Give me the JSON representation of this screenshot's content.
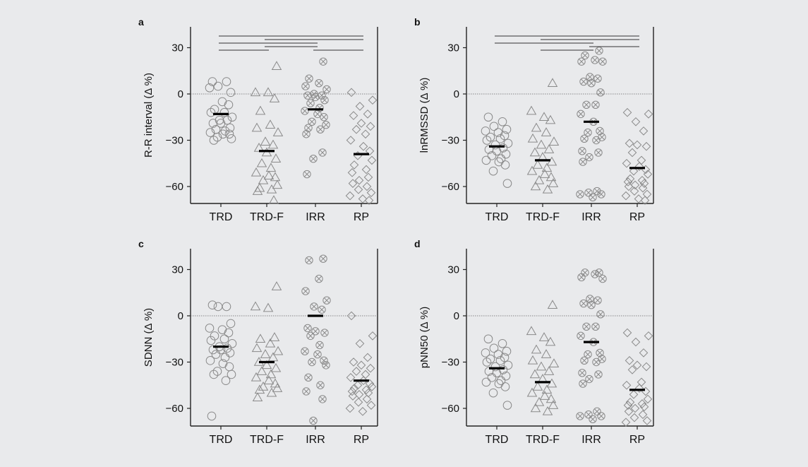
{
  "chart_data": [
    {
      "panel": "a",
      "type": "scatter",
      "ylabel": "R-R interval (Δ %)",
      "categories": [
        "TRD",
        "TRD-F",
        "IRR",
        "RP"
      ],
      "ylim": [
        -70,
        38
      ],
      "yticks": [
        30,
        0,
        -30,
        -60
      ],
      "zero_reference_line": true,
      "markers": [
        "circle",
        "triangle",
        "circle-x",
        "diamond"
      ],
      "medians": [
        -13,
        -37,
        -10,
        -39
      ],
      "points": [
        [
          8,
          8,
          5,
          1,
          4,
          -5,
          -7,
          -10,
          -12,
          -12,
          -15,
          -17,
          -17,
          -19,
          -19,
          -22,
          -23,
          -24,
          -25,
          -26,
          -26,
          -28,
          -29,
          -30
        ],
        [
          18,
          1,
          1,
          -3,
          -11,
          -20,
          -22,
          -25,
          -31,
          -33,
          -35,
          -38,
          -42,
          -45,
          -48,
          -51,
          -53,
          -54,
          -56,
          -59,
          -61,
          -62,
          -63,
          -69
        ],
        [
          21,
          10,
          7,
          5,
          3,
          0,
          -1,
          -1,
          -2,
          -4,
          -6,
          -9,
          -11,
          -13,
          -15,
          -18,
          -20,
          -22,
          -23,
          -26,
          -38,
          -42,
          -52
        ],
        [
          1,
          -4,
          -8,
          -13,
          -14,
          -19,
          -21,
          -23,
          -26,
          -30,
          -34,
          -37,
          -40,
          -43,
          -46,
          -49,
          -51,
          -54,
          -56,
          -58,
          -60,
          -62,
          -64,
          -66,
          -68,
          -69
        ]
      ],
      "significance_brackets": [
        [
          "TRD",
          "TRD-F"
        ],
        [
          "TRD",
          "IRR"
        ],
        [
          "TRD",
          "RP"
        ],
        [
          "TRD-F",
          "IRR"
        ],
        [
          "TRD-F",
          "RP"
        ],
        [
          "IRR",
          "RP"
        ]
      ]
    },
    {
      "panel": "b",
      "type": "scatter",
      "ylabel": "lnRMSSD (Δ %)",
      "categories": [
        "TRD",
        "TRD-F",
        "IRR",
        "RP"
      ],
      "ylim": [
        -70,
        38
      ],
      "yticks": [
        30,
        0,
        -30,
        -60
      ],
      "zero_reference_line": true,
      "markers": [
        "circle",
        "triangle",
        "circle-x",
        "diamond"
      ],
      "medians": [
        -34,
        -43,
        -18,
        -48
      ],
      "points": [
        [
          -15,
          -18,
          -21,
          -23,
          -24,
          -25,
          -27,
          -28,
          -29,
          -30,
          -32,
          -33,
          -35,
          -36,
          -37,
          -39,
          -40,
          -42,
          -43,
          -44,
          -46,
          -50,
          -58
        ],
        [
          7,
          -11,
          -15,
          -17,
          -22,
          -25,
          -29,
          -31,
          -33,
          -36,
          -38,
          -41,
          -44,
          -46,
          -48,
          -50,
          -52,
          -54,
          -56,
          -58,
          -60,
          -62
        ],
        [
          28,
          25,
          22,
          21,
          21,
          11,
          10,
          8,
          7,
          1,
          -7,
          -7,
          -13,
          -18,
          -24,
          -25,
          -28,
          -29,
          -30,
          -37,
          -38,
          -41,
          -44,
          -63,
          -64,
          -65,
          -65,
          -67
        ],
        [
          -12,
          -13,
          -18,
          -24,
          -32,
          -33,
          -34,
          -38,
          -43,
          -45,
          -47,
          -49,
          -50,
          -52,
          -55,
          -56,
          -57,
          -58,
          -59,
          -60,
          -61,
          -63,
          -65,
          -66,
          -68,
          -69
        ]
      ],
      "significance_brackets": [
        [
          "TRD",
          "IRR"
        ],
        [
          "TRD",
          "RP"
        ],
        [
          "TRD-F",
          "IRR"
        ],
        [
          "TRD-F",
          "RP"
        ],
        [
          "IRR",
          "RP"
        ]
      ]
    },
    {
      "panel": "c",
      "type": "scatter",
      "ylabel": "SDNN (Δ %)",
      "categories": [
        "TRD",
        "TRD-F",
        "IRR",
        "RP"
      ],
      "ylim": [
        -70,
        38
      ],
      "yticks": [
        30,
        0,
        -30,
        -60
      ],
      "zero_reference_line": true,
      "markers": [
        "circle",
        "triangle",
        "circle-x",
        "diamond"
      ],
      "medians": [
        -20,
        -30,
        0,
        -42
      ],
      "points": [
        [
          7,
          6,
          6,
          -5,
          -8,
          -9,
          -11,
          -13,
          -15,
          -16,
          -18,
          -20,
          -21,
          -22,
          -22,
          -24,
          -25,
          -27,
          -29,
          -31,
          -33,
          -36,
          -38,
          -38,
          -42,
          -65
        ],
        [
          19,
          6,
          5,
          -14,
          -15,
          -18,
          -21,
          -23,
          -25,
          -27,
          -30,
          -32,
          -34,
          -36,
          -38,
          -40,
          -42,
          -44,
          -46,
          -47,
          -48,
          -50,
          -53
        ],
        [
          37,
          36,
          24,
          16,
          10,
          6,
          4,
          -8,
          -10,
          -11,
          -13,
          -19,
          -23,
          -25,
          -29,
          -30,
          -32,
          -40,
          -45,
          -49,
          -54,
          -68
        ],
        [
          0,
          -13,
          -18,
          -27,
          -30,
          -32,
          -34,
          -36,
          -38,
          -40,
          -42,
          -44,
          -45,
          -46,
          -47,
          -48,
          -49,
          -50,
          -51,
          -52,
          -54,
          -56,
          -58,
          -60,
          -62
        ]
      ]
    },
    {
      "panel": "d",
      "type": "scatter",
      "ylabel": "pNN50 (Δ %)",
      "categories": [
        "TRD",
        "TRD-F",
        "IRR",
        "RP"
      ],
      "ylim": [
        -70,
        38
      ],
      "yticks": [
        30,
        0,
        -30,
        -60
      ],
      "zero_reference_line": true,
      "markers": [
        "circle",
        "triangle",
        "circle-x",
        "diamond"
      ],
      "medians": [
        -34,
        -43,
        -17,
        -48
      ],
      "points": [
        [
          -15,
          -18,
          -21,
          -23,
          -24,
          -25,
          -27,
          -28,
          -29,
          -30,
          -32,
          -33,
          -35,
          -36,
          -37,
          -39,
          -40,
          -42,
          -43,
          -44,
          -46,
          -50,
          -58
        ],
        [
          7,
          -10,
          -14,
          -17,
          -22,
          -25,
          -29,
          -31,
          -33,
          -36,
          -38,
          -41,
          -44,
          -46,
          -48,
          -50,
          -52,
          -54,
          -56,
          -58,
          -60,
          -62
        ],
        [
          28,
          28,
          27,
          25,
          24,
          11,
          10,
          8,
          7,
          1,
          -7,
          -7,
          -13,
          -17,
          -24,
          -25,
          -28,
          -29,
          -30,
          -37,
          -38,
          -41,
          -44,
          -62,
          -64,
          -65,
          -65,
          -67
        ],
        [
          -11,
          -13,
          -17,
          -24,
          -29,
          -32,
          -33,
          -35,
          -43,
          -45,
          -47,
          -49,
          -51,
          -54,
          -56,
          -57,
          -58,
          -59,
          -60,
          -62,
          -64,
          -66,
          -68,
          -69
        ]
      ]
    }
  ]
}
